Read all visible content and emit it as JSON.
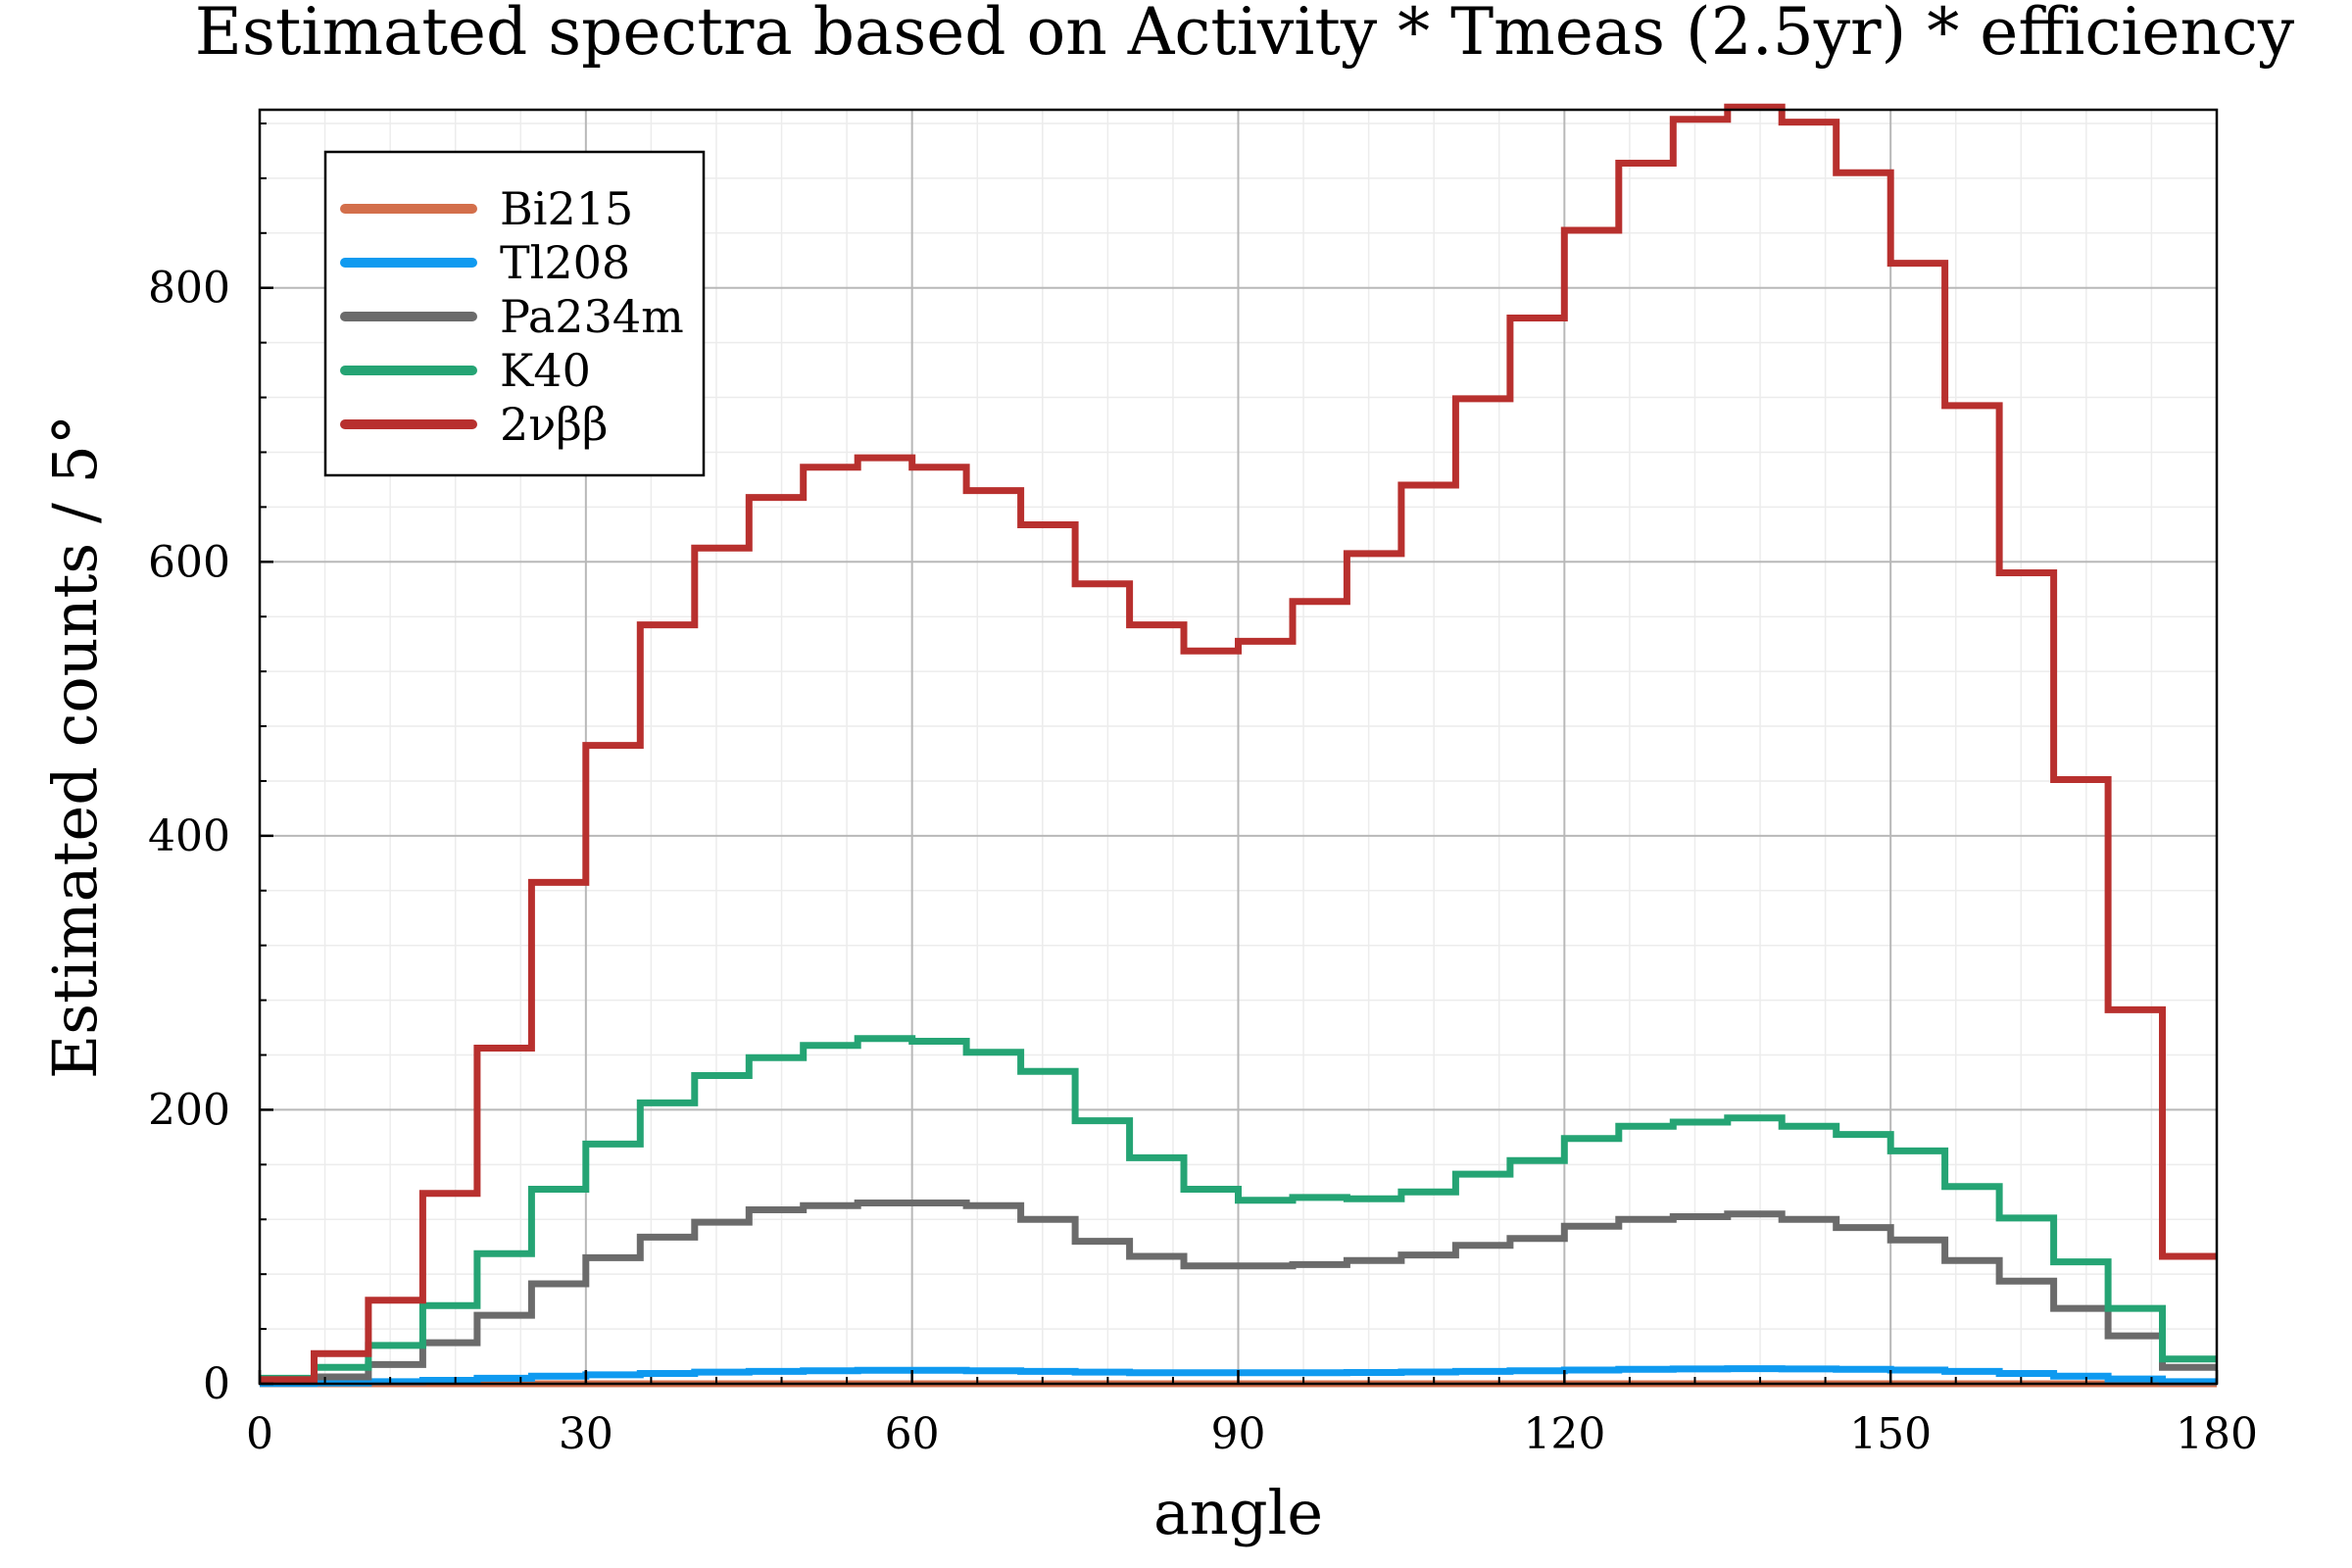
{
  "chart_data": {
    "type": "line",
    "drawstyle": "steps-histogram",
    "title": "Estimated spectra based on Activity * Tmeas (2.5yr) * efficiency",
    "xlabel": "angle",
    "ylabel": "Estimated counts / 5°",
    "xlim": [
      0,
      180
    ],
    "ylim": [
      0,
      930
    ],
    "xticks": [
      0,
      30,
      60,
      90,
      120,
      150,
      180
    ],
    "yticks": [
      0,
      200,
      400,
      600,
      800
    ],
    "grid": true,
    "minor_grid": true,
    "legend_position": "top-left",
    "bin_edges": [
      0,
      5,
      10,
      15,
      20,
      25,
      30,
      35,
      40,
      45,
      50,
      55,
      60,
      65,
      70,
      75,
      80,
      85,
      90,
      95,
      100,
      105,
      110,
      115,
      120,
      125,
      130,
      135,
      140,
      145,
      150,
      155,
      160,
      165,
      170,
      175,
      180
    ],
    "series": [
      {
        "name": "Bi215",
        "color": "#d36f4b",
        "values": [
          0,
          0,
          0,
          0,
          0,
          0,
          0,
          0,
          0,
          0,
          0,
          0,
          0,
          0,
          0,
          0,
          0,
          0,
          0,
          0,
          0,
          0,
          0,
          0,
          0,
          0,
          0,
          0,
          0,
          0,
          0,
          0,
          0,
          0,
          0,
          0
        ]
      },
      {
        "name": "Tl208",
        "color": "#0f9af0",
        "values": [
          0.2,
          0.6,
          1.5,
          2.5,
          4,
          5.5,
          6.5,
          7.5,
          8.5,
          9,
          9.5,
          9.8,
          9.8,
          9.5,
          9,
          8.5,
          8,
          8,
          8,
          8,
          8.2,
          8.6,
          9,
          9.5,
          10,
          10.5,
          10.8,
          11,
          10.8,
          10.5,
          10,
          9,
          7.5,
          5.5,
          3.5,
          1.5
        ]
      },
      {
        "name": "Pa234m",
        "color": "#6b6b6b",
        "values": [
          3,
          5,
          14,
          30,
          50,
          73,
          92,
          107,
          118,
          127,
          130,
          132,
          132,
          130,
          120,
          104,
          93,
          86,
          86,
          87,
          90,
          94,
          101,
          106,
          115,
          120,
          122,
          124,
          120,
          114,
          105,
          90,
          75,
          55,
          35,
          12
        ]
      },
      {
        "name": "K40",
        "color": "#25a474",
        "values": [
          4,
          12,
          28,
          57,
          95,
          142,
          175,
          205,
          225,
          238,
          247,
          252,
          250,
          242,
          228,
          192,
          165,
          142,
          134,
          136,
          135,
          140,
          153,
          163,
          179,
          188,
          191,
          194,
          188,
          182,
          170,
          144,
          121,
          89,
          55,
          18
        ]
      },
      {
        "name": "2νββ",
        "color": "#b8302e",
        "values": [
          3,
          22,
          61,
          139,
          245,
          366,
          466,
          554,
          610,
          647,
          669,
          676,
          669,
          652,
          627,
          584,
          554,
          535,
          542,
          571,
          606,
          656,
          719,
          778,
          842,
          891,
          923,
          932,
          921,
          884,
          818,
          714,
          592,
          441,
          273,
          93
        ]
      }
    ]
  }
}
